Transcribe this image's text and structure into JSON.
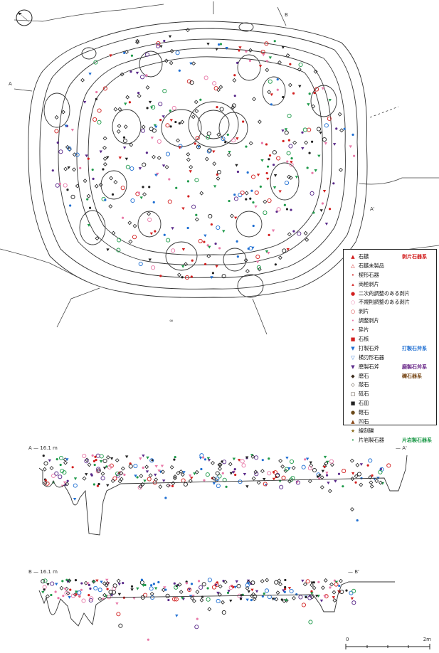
{
  "plan": {
    "label_A": "A",
    "label_A_end": "A'",
    "label_B": "B",
    "label_B_end": "B'",
    "label_hachi": "∞",
    "north_arrow_icon": "north-arrow-icon"
  },
  "legend": {
    "items": [
      {
        "symbol": "▲",
        "color": "#d21f1f",
        "label": "石鏃",
        "group": "剥片石器系",
        "group_color": "#d21f1f"
      },
      {
        "symbol": "△",
        "color": "#d21f1f",
        "label": "石鏃未製品"
      },
      {
        "symbol": "•",
        "color": "#d21f1f",
        "label": "楔形石器"
      },
      {
        "symbol": "▴",
        "color": "#d21f1f",
        "label": "両極剥片"
      },
      {
        "symbol": "●",
        "color": "#d21f1f",
        "label": "二次的調整のある剥片"
      },
      {
        "symbol": "○",
        "color": "#e879a8",
        "label": "不規則調整のある剥片"
      },
      {
        "symbol": "○",
        "color": "#d21f1f",
        "label": "剥片"
      },
      {
        "symbol": "•",
        "color": "#e879a8",
        "label": "調整剥片"
      },
      {
        "symbol": "•",
        "color": "#d21f1f",
        "label": "砕片"
      },
      {
        "symbol": "■",
        "color": "#d21f1f",
        "label": "石核"
      },
      {
        "symbol": "▼",
        "color": "#1f6fd2",
        "label": "打製石斧",
        "group": "打製石斧系",
        "group_color": "#1f6fd2"
      },
      {
        "symbol": "▽",
        "color": "#1f6fd2",
        "label": "横刃形石器"
      },
      {
        "symbol": "▼",
        "color": "#5a2a8a",
        "label": "磨製石斧",
        "group": "磨製石斧系",
        "group_color": "#6b2a8a"
      },
      {
        "symbol": "◆",
        "color": "#3a2a1a",
        "label": "磨石",
        "group": "礫石器系",
        "group_color": "#7a4a1a"
      },
      {
        "symbol": "◇",
        "color": "#3a2a1a",
        "label": "敲石"
      },
      {
        "symbol": "□",
        "color": "#3a2a1a",
        "label": "砥石"
      },
      {
        "symbol": "■",
        "color": "#222222",
        "label": "石皿"
      },
      {
        "symbol": "●",
        "color": "#6b4a1a",
        "label": "軽石"
      },
      {
        "symbol": "▲",
        "color": "#8a4a1a",
        "label": "凹石"
      },
      {
        "symbol": "★",
        "color": "#8a6a1a",
        "label": "線刻礫"
      },
      {
        "symbol": "•",
        "color": "#1f9a4a",
        "label": "片岩製石器",
        "group": "片岩製石器系",
        "group_color": "#1f9a4a"
      }
    ]
  },
  "section_A": {
    "label": "A — 16.1 m",
    "label_end": "— A'"
  },
  "section_B": {
    "label": "B — 16.1 m",
    "label_end": "— B'"
  },
  "scale_bar": {
    "zero": "0",
    "end": "2m"
  }
}
